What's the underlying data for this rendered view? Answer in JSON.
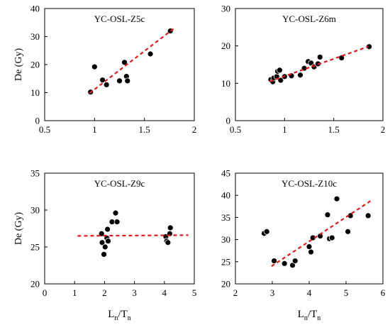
{
  "chart_data": [
    {
      "type": "scatter",
      "title": "YC-OSL-Z5c",
      "ylabel": "De (Gy)",
      "xlabel": "",
      "xlim": [
        0.5,
        2
      ],
      "ylim": [
        0,
        40
      ],
      "xticks": [
        "0.5",
        "1",
        "1.5",
        "2"
      ],
      "yticks": [
        "0",
        "10",
        "20",
        "30",
        "40"
      ],
      "points": [
        {
          "x": 0.96,
          "y": 10.2
        },
        {
          "x": 1.0,
          "y": 19.2
        },
        {
          "x": 1.08,
          "y": 14.5
        },
        {
          "x": 1.12,
          "y": 12.8
        },
        {
          "x": 1.25,
          "y": 14.2
        },
        {
          "x": 1.3,
          "y": 20.8
        },
        {
          "x": 1.32,
          "y": 15.8
        },
        {
          "x": 1.33,
          "y": 14.2
        },
        {
          "x": 1.56,
          "y": 23.8
        },
        {
          "x": 1.76,
          "y": 32.0
        }
      ],
      "fit": {
        "x": [
          0.95,
          1.8
        ],
        "y": [
          9.8,
          33.0
        ],
        "color": "#e31a1c",
        "style": "dashed"
      },
      "grid": false
    },
    {
      "type": "scatter",
      "title": "YC-OSL-Z6m",
      "ylabel": "",
      "xlabel": "",
      "xlim": [
        0.5,
        2
      ],
      "ylim": [
        0,
        30
      ],
      "xticks": [
        "0.5",
        "1",
        "1.5",
        "2"
      ],
      "yticks": [
        "0",
        "10",
        "20",
        "30"
      ],
      "points": [
        {
          "x": 0.86,
          "y": 11.0
        },
        {
          "x": 0.88,
          "y": 10.4
        },
        {
          "x": 0.89,
          "y": 11.4
        },
        {
          "x": 0.92,
          "y": 11.8
        },
        {
          "x": 0.93,
          "y": 13.2
        },
        {
          "x": 0.95,
          "y": 13.5
        },
        {
          "x": 0.96,
          "y": 10.8
        },
        {
          "x": 1.0,
          "y": 11.8
        },
        {
          "x": 1.07,
          "y": 12.0
        },
        {
          "x": 1.16,
          "y": 12.2
        },
        {
          "x": 1.2,
          "y": 14.0
        },
        {
          "x": 1.24,
          "y": 15.8
        },
        {
          "x": 1.27,
          "y": 15.4
        },
        {
          "x": 1.3,
          "y": 14.4
        },
        {
          "x": 1.34,
          "y": 15.2
        },
        {
          "x": 1.36,
          "y": 17.0
        },
        {
          "x": 1.58,
          "y": 16.8
        },
        {
          "x": 1.86,
          "y": 19.8
        }
      ],
      "fit": {
        "x": [
          0.85,
          1.85
        ],
        "y": [
          10.5,
          19.8
        ],
        "color": "#e31a1c",
        "style": "dashed"
      },
      "grid": false
    },
    {
      "type": "scatter",
      "title": "YC-OSL-Z9c",
      "ylabel": "De (Gy)",
      "xlabel": "Ln/Tn",
      "xlim": [
        0,
        5
      ],
      "ylim": [
        20,
        35
      ],
      "xticks": [
        "0",
        "1",
        "2",
        "3",
        "4",
        "5"
      ],
      "yticks": [
        "20",
        "25",
        "30",
        "35"
      ],
      "points": [
        {
          "x": 1.9,
          "y": 26.8
        },
        {
          "x": 1.92,
          "y": 25.6
        },
        {
          "x": 1.98,
          "y": 24.0
        },
        {
          "x": 2.02,
          "y": 25.0
        },
        {
          "x": 2.08,
          "y": 26.2
        },
        {
          "x": 2.1,
          "y": 27.4
        },
        {
          "x": 2.12,
          "y": 25.8
        },
        {
          "x": 2.25,
          "y": 28.4
        },
        {
          "x": 2.37,
          "y": 29.6
        },
        {
          "x": 2.42,
          "y": 28.4
        },
        {
          "x": 4.05,
          "y": 26.4
        },
        {
          "x": 4.08,
          "y": 25.8
        },
        {
          "x": 4.12,
          "y": 25.6
        },
        {
          "x": 4.18,
          "y": 26.8
        },
        {
          "x": 4.2,
          "y": 27.6
        }
      ],
      "fit": {
        "x": [
          1.1,
          4.8
        ],
        "y": [
          26.5,
          26.6
        ],
        "color": "#e31a1c",
        "style": "dashed"
      },
      "grid": false
    },
    {
      "type": "scatter",
      "title": "YC-OSL-Z10c",
      "ylabel": "",
      "xlabel": "Ln/Tn",
      "xlim": [
        2,
        6
      ],
      "ylim": [
        20,
        45
      ],
      "xticks": [
        "2",
        "3",
        "4",
        "5",
        "6"
      ],
      "yticks": [
        "20",
        "25",
        "30",
        "35",
        "40",
        "45"
      ],
      "points": [
        {
          "x": 2.78,
          "y": 31.4
        },
        {
          "x": 2.85,
          "y": 31.8
        },
        {
          "x": 3.05,
          "y": 25.2
        },
        {
          "x": 3.33,
          "y": 24.6
        },
        {
          "x": 3.55,
          "y": 24.2
        },
        {
          "x": 3.62,
          "y": 25.2
        },
        {
          "x": 4.0,
          "y": 28.4
        },
        {
          "x": 4.05,
          "y": 27.2
        },
        {
          "x": 4.1,
          "y": 30.4
        },
        {
          "x": 4.3,
          "y": 30.8
        },
        {
          "x": 4.5,
          "y": 35.6
        },
        {
          "x": 4.55,
          "y": 30.2
        },
        {
          "x": 4.62,
          "y": 30.4
        },
        {
          "x": 4.75,
          "y": 39.2
        },
        {
          "x": 5.05,
          "y": 31.8
        },
        {
          "x": 5.12,
          "y": 35.4
        },
        {
          "x": 5.6,
          "y": 35.4
        }
      ],
      "fit": {
        "x": [
          2.98,
          5.68
        ],
        "y": [
          24.0,
          38.8
        ],
        "color": "#e31a1c",
        "style": "dashed"
      },
      "grid": false
    }
  ]
}
